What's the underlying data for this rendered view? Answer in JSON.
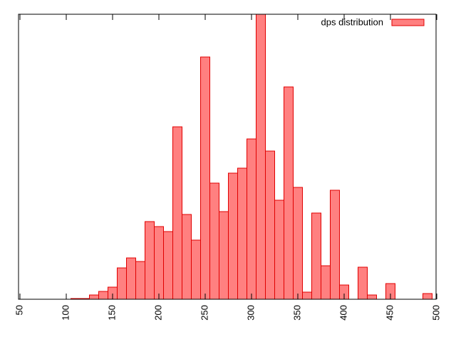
{
  "chart_data": {
    "type": "histogram",
    "bins": [
      105,
      115,
      125,
      135,
      145,
      155,
      165,
      175,
      185,
      195,
      205,
      215,
      225,
      235,
      245,
      255,
      265,
      275,
      285,
      295,
      305,
      315,
      325,
      335,
      345,
      355,
      365,
      375,
      385,
      395,
      405,
      415,
      425,
      435,
      445,
      455,
      465,
      475,
      485,
      495
    ],
    "series": [
      {
        "name": "dps distribution",
        "color": "#ff8080",
        "edge_color": "#e00000",
        "values": [
          1,
          1,
          6,
          11,
          17,
          44,
          58,
          53,
          109,
          102,
          95,
          242,
          119,
          83,
          340,
          163,
          123,
          177,
          184,
          225,
          400,
          208,
          139,
          298,
          157,
          10,
          121,
          47,
          153,
          20,
          0,
          45,
          6,
          0,
          22,
          0,
          0,
          0,
          8
        ]
      }
    ],
    "xlim": [
      50,
      500
    ],
    "ylim": [
      0,
      400
    ],
    "xticks": [
      50,
      100,
      150,
      200,
      250,
      300,
      350,
      400,
      450,
      500
    ],
    "legend": "top-right"
  }
}
